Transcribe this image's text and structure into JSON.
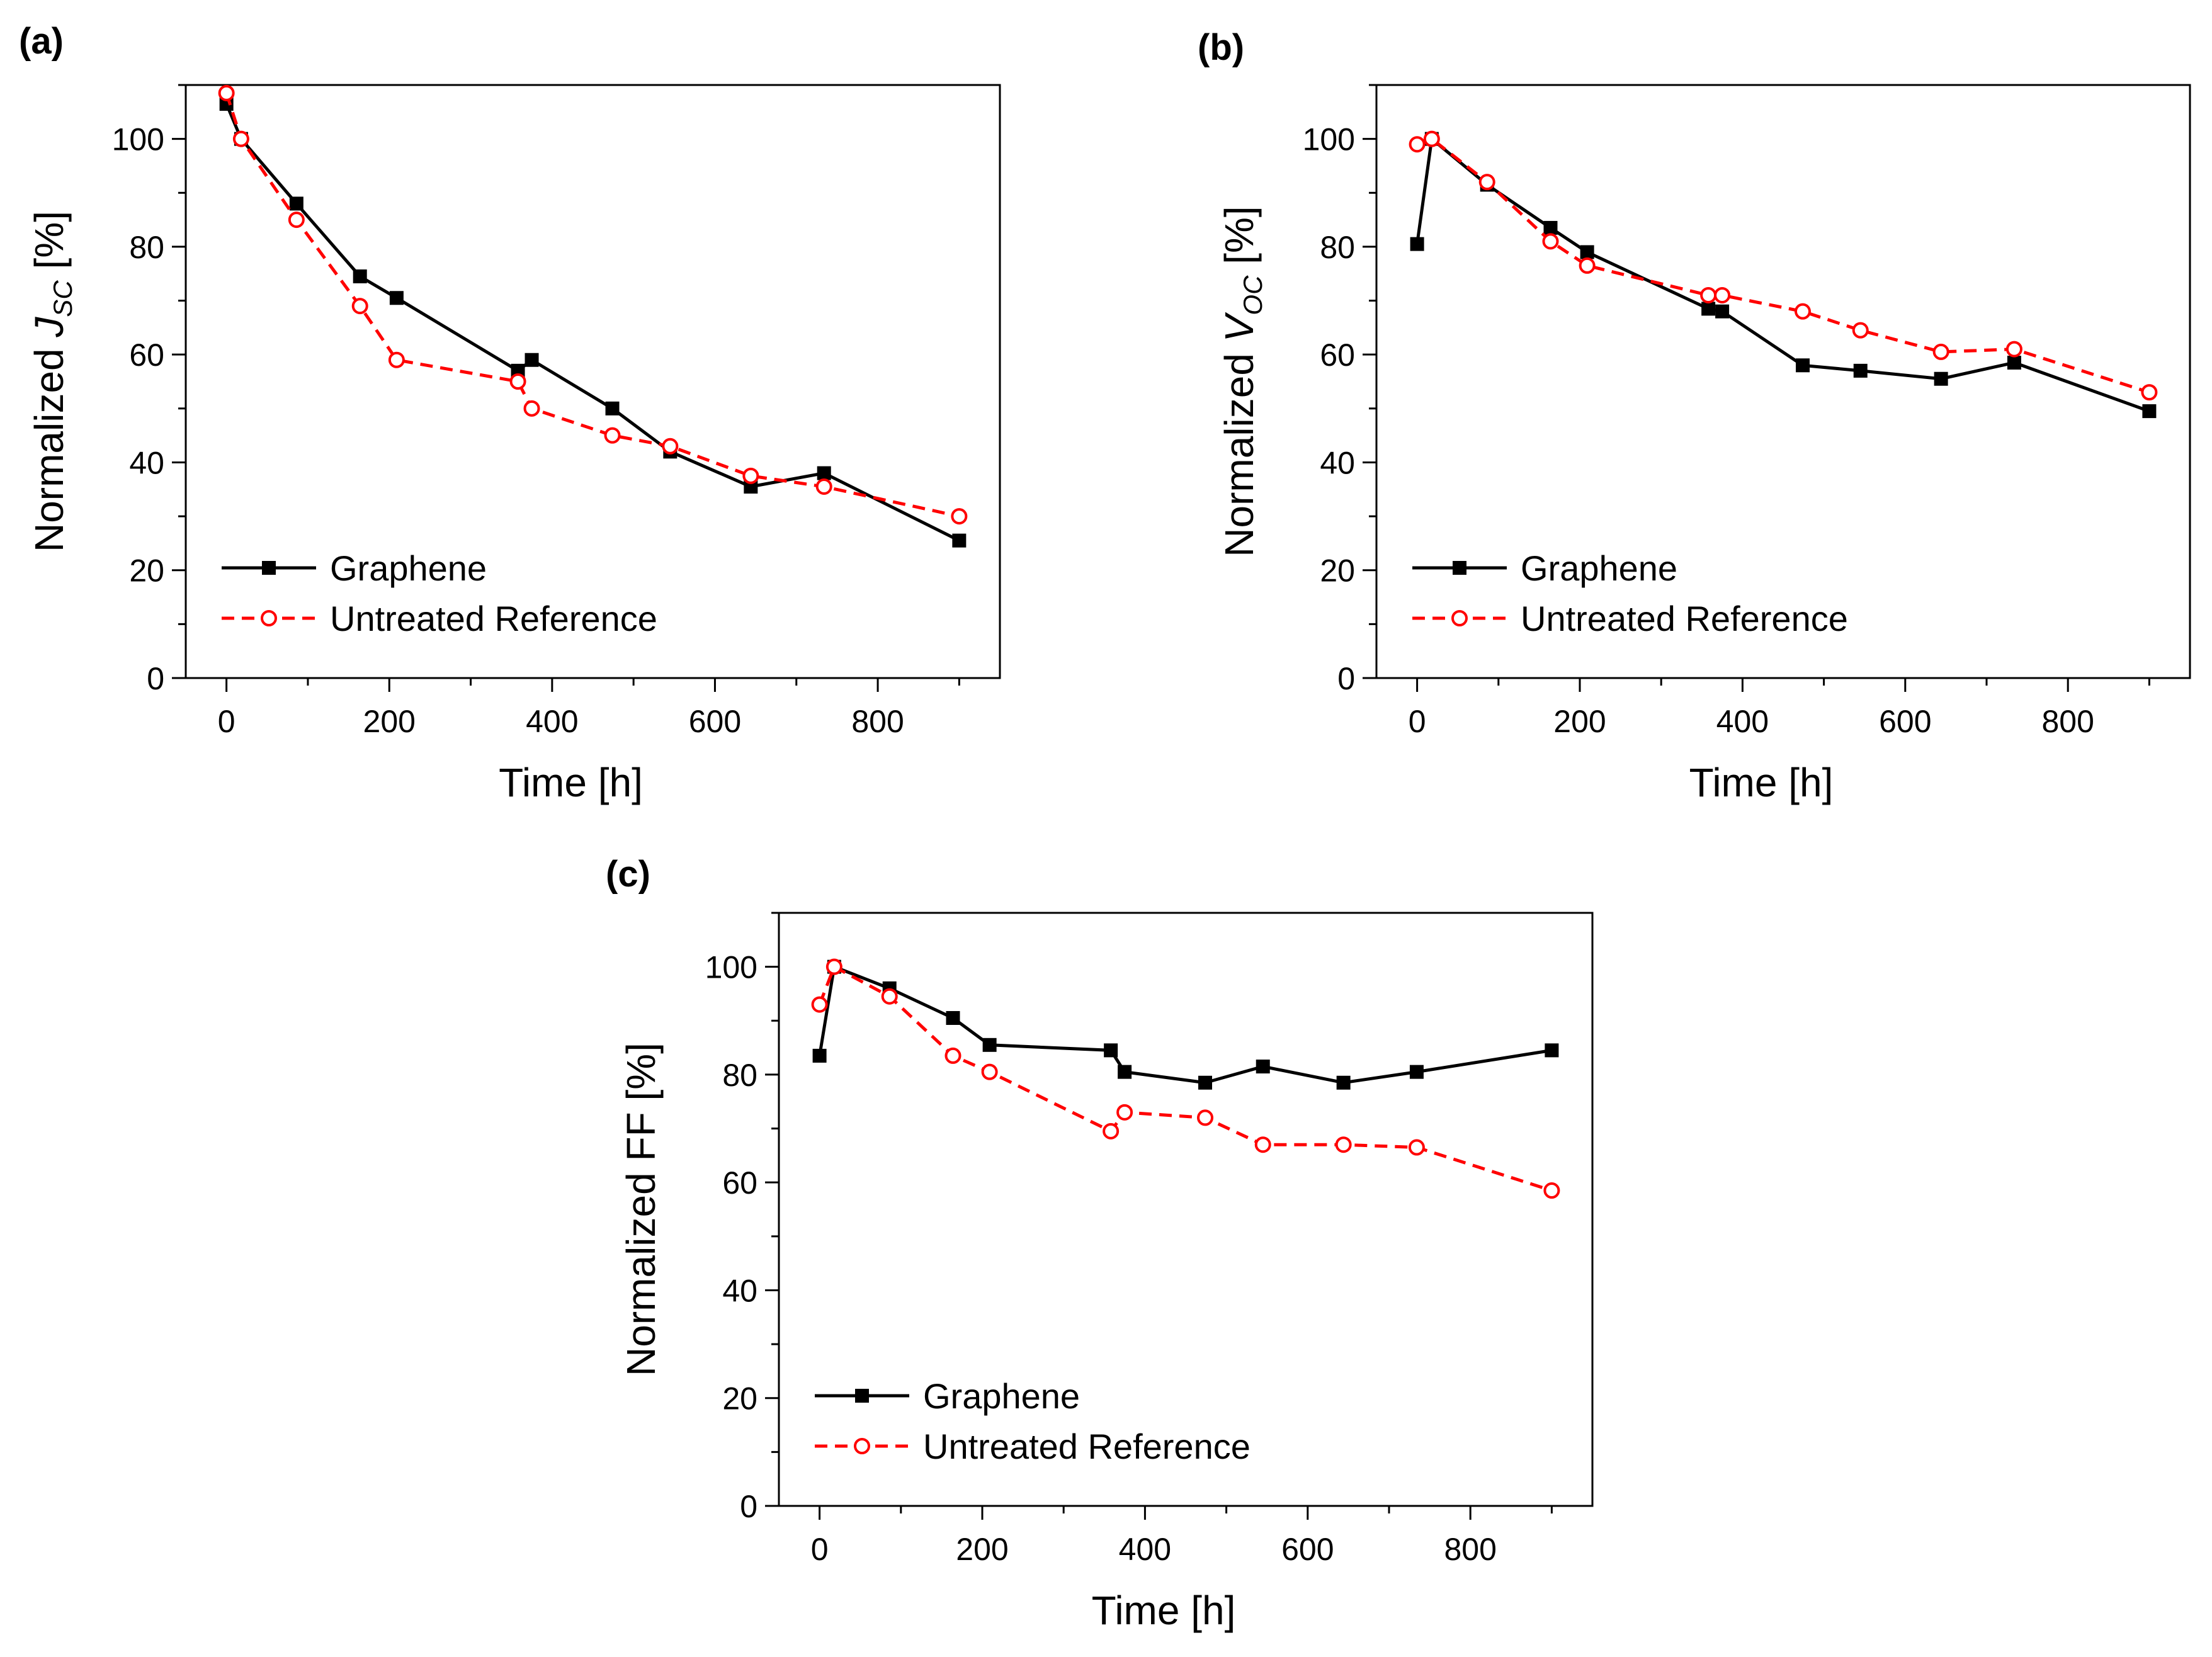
{
  "chart_data": [
    {
      "type": "line",
      "panel_label": "(a)",
      "xlabel": "Time [h]",
      "ylabel_parts": [
        "Normalized ",
        "J",
        "SC",
        " [%]"
      ],
      "xlim": [
        -50,
        950
      ],
      "ylim": [
        0,
        110
      ],
      "xticks": [
        0,
        200,
        400,
        600,
        800
      ],
      "yticks": [
        0,
        20,
        40,
        60,
        80,
        100
      ],
      "legend_position": "lower-left",
      "series": [
        {
          "name": "Graphene",
          "color": "#000000",
          "style": "solid",
          "marker": "filled-square",
          "x": [
            0,
            18,
            86,
            164,
            209,
            358,
            375,
            474,
            545,
            644,
            734,
            900
          ],
          "y": [
            106.5,
            100,
            88,
            74.5,
            70.5,
            57,
            59,
            50,
            42,
            35.5,
            38,
            25.5
          ]
        },
        {
          "name": "Untreated Reference",
          "color": "#ff0000",
          "style": "dashed",
          "marker": "open-circle",
          "x": [
            0,
            18,
            86,
            164,
            209,
            358,
            375,
            474,
            545,
            644,
            734,
            900
          ],
          "y": [
            108.5,
            100,
            85,
            69,
            59,
            55,
            50,
            45,
            43,
            37.5,
            35.5,
            30
          ]
        }
      ]
    },
    {
      "type": "line",
      "panel_label": "(b)",
      "xlabel": "Time [h]",
      "ylabel_parts": [
        "Normalized ",
        "V",
        "OC",
        " [%]"
      ],
      "xlim": [
        -50,
        950
      ],
      "ylim": [
        0,
        110
      ],
      "xticks": [
        0,
        200,
        400,
        600,
        800
      ],
      "yticks": [
        0,
        20,
        40,
        60,
        80,
        100
      ],
      "legend_position": "lower-left",
      "series": [
        {
          "name": "Graphene",
          "color": "#000000",
          "style": "solid",
          "marker": "filled-square",
          "x": [
            0,
            18,
            86,
            164,
            209,
            358,
            375,
            474,
            545,
            644,
            734,
            900
          ],
          "y": [
            80.5,
            100,
            91.5,
            83.5,
            79,
            68.5,
            68,
            58,
            57,
            55.5,
            58.5,
            49.5
          ]
        },
        {
          "name": "Untreated Reference",
          "color": "#ff0000",
          "style": "dashed",
          "marker": "open-circle",
          "x": [
            0,
            18,
            86,
            164,
            209,
            358,
            375,
            474,
            545,
            644,
            734,
            900
          ],
          "y": [
            99,
            100,
            92,
            81,
            76.5,
            71,
            71,
            68,
            64.5,
            60.5,
            61,
            53
          ]
        }
      ]
    },
    {
      "type": "line",
      "panel_label": "(c)",
      "xlabel": "Time [h]",
      "ylabel_parts": [
        "Normalized FF [%]"
      ],
      "xlim": [
        -50,
        950
      ],
      "ylim": [
        0,
        110
      ],
      "xticks": [
        0,
        200,
        400,
        600,
        800
      ],
      "yticks": [
        0,
        20,
        40,
        60,
        80,
        100
      ],
      "legend_position": "lower-left",
      "series": [
        {
          "name": "Graphene",
          "color": "#000000",
          "style": "solid",
          "marker": "filled-square",
          "x": [
            0,
            18,
            86,
            164,
            209,
            358,
            375,
            474,
            545,
            644,
            734,
            900
          ],
          "y": [
            83.5,
            100,
            96,
            90.5,
            85.5,
            84.5,
            80.5,
            78.5,
            81.5,
            78.5,
            80.5,
            84.5
          ]
        },
        {
          "name": "Untreated Reference",
          "color": "#ff0000",
          "style": "dashed",
          "marker": "open-circle",
          "x": [
            0,
            18,
            86,
            164,
            209,
            358,
            375,
            474,
            545,
            644,
            734,
            900
          ],
          "y": [
            93,
            100,
            94.5,
            83.5,
            80.5,
            69.5,
            73,
            72,
            67,
            67,
            66.5,
            58.5
          ]
        }
      ]
    }
  ]
}
